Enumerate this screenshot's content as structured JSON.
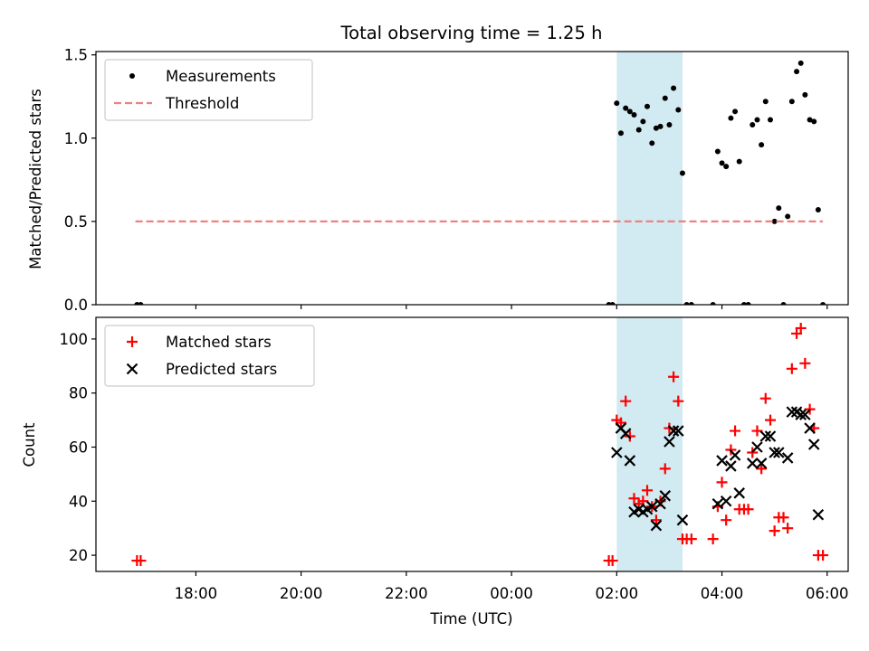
{
  "chart_data": [
    {
      "type": "scatter",
      "title": "Total observing time = 1.25 h",
      "ylabel": "Matched/Predicted stars",
      "xlabel": "",
      "ylim": [
        0,
        1.52
      ],
      "yticks": [
        "0.0",
        "0.5",
        "1.0",
        "1.5"
      ],
      "ytick_values": [
        0,
        0.5,
        1.0,
        1.5
      ],
      "legend_position": "top-left",
      "highlight_span": {
        "start": 26.0,
        "end": 27.25,
        "color": "#add8e6"
      },
      "series": [
        {
          "name": "Measurements",
          "marker": "dot",
          "color": "#000000",
          "points": [
            [
              16.88,
              0
            ],
            [
              16.95,
              0
            ],
            [
              25.85,
              0
            ],
            [
              25.92,
              0
            ],
            [
              26.0,
              1.21
            ],
            [
              26.08,
              1.03
            ],
            [
              26.17,
              1.18
            ],
            [
              26.25,
              1.16
            ],
            [
              26.33,
              1.14
            ],
            [
              26.42,
              1.05
            ],
            [
              26.5,
              1.1
            ],
            [
              26.58,
              1.19
            ],
            [
              26.67,
              0.97
            ],
            [
              26.75,
              1.06
            ],
            [
              26.83,
              1.07
            ],
            [
              26.92,
              1.24
            ],
            [
              27.0,
              1.08
            ],
            [
              27.08,
              1.3
            ],
            [
              27.17,
              1.17
            ],
            [
              27.25,
              0.79
            ],
            [
              27.33,
              0
            ],
            [
              27.42,
              0
            ],
            [
              27.83,
              0
            ],
            [
              27.92,
              0.92
            ],
            [
              28.0,
              0.85
            ],
            [
              28.08,
              0.83
            ],
            [
              28.17,
              1.12
            ],
            [
              28.25,
              1.16
            ],
            [
              28.33,
              0.86
            ],
            [
              28.42,
              0
            ],
            [
              28.5,
              0
            ],
            [
              28.58,
              1.08
            ],
            [
              28.67,
              1.11
            ],
            [
              28.75,
              0.96
            ],
            [
              28.83,
              1.22
            ],
            [
              28.92,
              1.11
            ],
            [
              29.0,
              0.5
            ],
            [
              29.08,
              0.58
            ],
            [
              29.17,
              0
            ],
            [
              29.25,
              0.53
            ],
            [
              29.33,
              1.22
            ],
            [
              29.42,
              1.4
            ],
            [
              29.5,
              1.45
            ],
            [
              29.58,
              1.26
            ],
            [
              29.67,
              1.11
            ],
            [
              29.75,
              1.1
            ],
            [
              29.83,
              0.57
            ],
            [
              29.92,
              0
            ]
          ]
        },
        {
          "name": "Threshold",
          "marker": "dashed-line",
          "color": "#f08080",
          "points": [
            [
              16.85,
              0.5
            ],
            [
              29.92,
              0.5
            ]
          ]
        }
      ]
    },
    {
      "type": "scatter",
      "title": "",
      "ylabel": "Count",
      "xlabel": "Time (UTC)",
      "ylim": [
        14,
        108
      ],
      "yticks": [
        "20",
        "40",
        "60",
        "80",
        "100"
      ],
      "ytick_values": [
        20,
        40,
        60,
        80,
        100
      ],
      "xlim": [
        16.1,
        30.4
      ],
      "xticks": [
        "18:00",
        "20:00",
        "22:00",
        "00:00",
        "02:00",
        "04:00",
        "06:00"
      ],
      "xtick_values": [
        18,
        20,
        22,
        24,
        26,
        28,
        30
      ],
      "legend_position": "top-left",
      "highlight_span": {
        "start": 26.0,
        "end": 27.25,
        "color": "#add8e6"
      },
      "series": [
        {
          "name": "Matched stars",
          "marker": "plus",
          "color": "#ff0000",
          "points": [
            [
              16.88,
              18
            ],
            [
              16.95,
              18
            ],
            [
              25.85,
              18
            ],
            [
              25.92,
              18
            ],
            [
              26.0,
              70
            ],
            [
              26.08,
              69
            ],
            [
              26.17,
              77
            ],
            [
              26.25,
              64
            ],
            [
              26.33,
              41
            ],
            [
              26.42,
              39
            ],
            [
              26.5,
              40
            ],
            [
              26.58,
              44
            ],
            [
              26.67,
              38
            ],
            [
              26.75,
              33
            ],
            [
              26.83,
              40
            ],
            [
              26.92,
              52
            ],
            [
              27.0,
              67
            ],
            [
              27.08,
              86
            ],
            [
              27.17,
              77
            ],
            [
              27.25,
              26
            ],
            [
              27.33,
              26
            ],
            [
              27.42,
              26
            ],
            [
              27.83,
              26
            ],
            [
              27.92,
              38
            ],
            [
              28.0,
              47
            ],
            [
              28.08,
              33
            ],
            [
              28.17,
              59
            ],
            [
              28.25,
              66
            ],
            [
              28.33,
              37
            ],
            [
              28.42,
              37
            ],
            [
              28.5,
              37
            ],
            [
              28.58,
              58
            ],
            [
              28.67,
              66
            ],
            [
              28.75,
              52
            ],
            [
              28.83,
              78
            ],
            [
              28.92,
              70
            ],
            [
              29.0,
              29
            ],
            [
              29.08,
              34
            ],
            [
              29.17,
              34
            ],
            [
              29.25,
              30
            ],
            [
              29.33,
              89
            ],
            [
              29.42,
              102
            ],
            [
              29.5,
              104
            ],
            [
              29.58,
              91
            ],
            [
              29.67,
              74
            ],
            [
              29.75,
              67
            ],
            [
              29.83,
              20
            ],
            [
              29.92,
              20
            ]
          ]
        },
        {
          "name": "Predicted stars",
          "marker": "x",
          "color": "#000000",
          "points": [
            [
              26.0,
              58
            ],
            [
              26.08,
              67
            ],
            [
              26.17,
              65
            ],
            [
              26.25,
              55
            ],
            [
              26.33,
              36
            ],
            [
              26.42,
              37
            ],
            [
              26.5,
              36
            ],
            [
              26.58,
              37
            ],
            [
              26.67,
              38
            ],
            [
              26.75,
              31
            ],
            [
              26.83,
              39
            ],
            [
              26.92,
              42
            ],
            [
              27.0,
              62
            ],
            [
              27.08,
              66
            ],
            [
              27.17,
              66
            ],
            [
              27.25,
              33
            ],
            [
              27.92,
              39
            ],
            [
              28.0,
              55
            ],
            [
              28.08,
              40
            ],
            [
              28.17,
              53
            ],
            [
              28.25,
              57
            ],
            [
              28.33,
              43
            ],
            [
              28.58,
              54
            ],
            [
              28.67,
              60
            ],
            [
              28.75,
              54
            ],
            [
              28.83,
              64
            ],
            [
              28.92,
              64
            ],
            [
              29.0,
              58
            ],
            [
              29.08,
              58
            ],
            [
              29.25,
              56
            ],
            [
              29.33,
              73
            ],
            [
              29.42,
              73
            ],
            [
              29.5,
              72
            ],
            [
              29.58,
              72
            ],
            [
              29.67,
              67
            ],
            [
              29.75,
              61
            ],
            [
              29.83,
              35
            ]
          ]
        }
      ]
    }
  ]
}
